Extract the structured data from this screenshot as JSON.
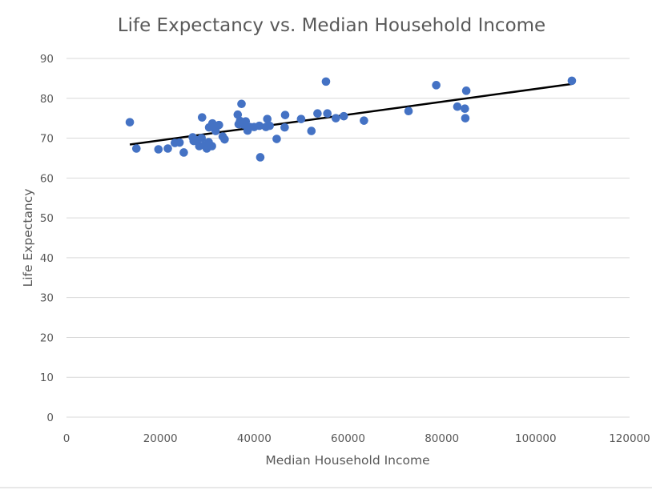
{
  "chart_data": {
    "type": "scatter",
    "title": "Life Expectancy vs. Median Household Income",
    "xlabel": "Median Household Income",
    "ylabel": "Life Expectancy",
    "xlim": [
      0,
      120000
    ],
    "ylim": [
      0,
      90
    ],
    "xticks": [
      0,
      20000,
      40000,
      60000,
      80000,
      100000,
      120000
    ],
    "yticks": [
      0,
      10,
      20,
      30,
      40,
      50,
      60,
      70,
      80,
      90
    ],
    "grid": "horizontal",
    "legend": "none",
    "colors": {
      "point": "#4472c4",
      "trendline": "#000000"
    },
    "series": [
      {
        "points": [
          [
            13500,
            74.0
          ],
          [
            14900,
            67.4
          ],
          [
            19600,
            67.2
          ],
          [
            21600,
            67.4
          ],
          [
            23100,
            68.8
          ],
          [
            24100,
            68.9
          ],
          [
            25000,
            66.4
          ],
          [
            26900,
            70.2
          ],
          [
            27100,
            69.3
          ],
          [
            27800,
            69.5
          ],
          [
            28300,
            68.0
          ],
          [
            28800,
            70.0
          ],
          [
            28900,
            75.2
          ],
          [
            29500,
            68.2
          ],
          [
            29900,
            67.4
          ],
          [
            30300,
            69.0
          ],
          [
            30400,
            72.7
          ],
          [
            31000,
            68.0
          ],
          [
            31100,
            73.7
          ],
          [
            31300,
            72.8
          ],
          [
            31800,
            71.8
          ],
          [
            32500,
            73.3
          ],
          [
            33300,
            70.4
          ],
          [
            33700,
            69.7
          ],
          [
            36500,
            75.9
          ],
          [
            36700,
            73.5
          ],
          [
            37000,
            74.3
          ],
          [
            37300,
            78.6
          ],
          [
            37700,
            73.4
          ],
          [
            38200,
            74.2
          ],
          [
            38600,
            71.9
          ],
          [
            39100,
            72.8
          ],
          [
            40000,
            72.8
          ],
          [
            41100,
            73.1
          ],
          [
            41300,
            65.2
          ],
          [
            42500,
            72.8
          ],
          [
            42800,
            74.8
          ],
          [
            43300,
            73.1
          ],
          [
            44800,
            69.8
          ],
          [
            46500,
            72.7
          ],
          [
            46600,
            75.8
          ],
          [
            50000,
            74.8
          ],
          [
            52200,
            71.8
          ],
          [
            53500,
            76.2
          ],
          [
            55300,
            84.2
          ],
          [
            55600,
            76.2
          ],
          [
            57400,
            75.0
          ],
          [
            59100,
            75.5
          ],
          [
            63400,
            74.4
          ],
          [
            72900,
            76.8
          ],
          [
            78800,
            83.3
          ],
          [
            83300,
            77.9
          ],
          [
            84900,
            77.4
          ],
          [
            85000,
            75.0
          ],
          [
            85200,
            81.9
          ],
          [
            107700,
            84.4
          ]
        ]
      }
    ],
    "trendline": {
      "x": [
        13500,
        107700
      ],
      "y": [
        68.4,
        83.6
      ]
    }
  }
}
